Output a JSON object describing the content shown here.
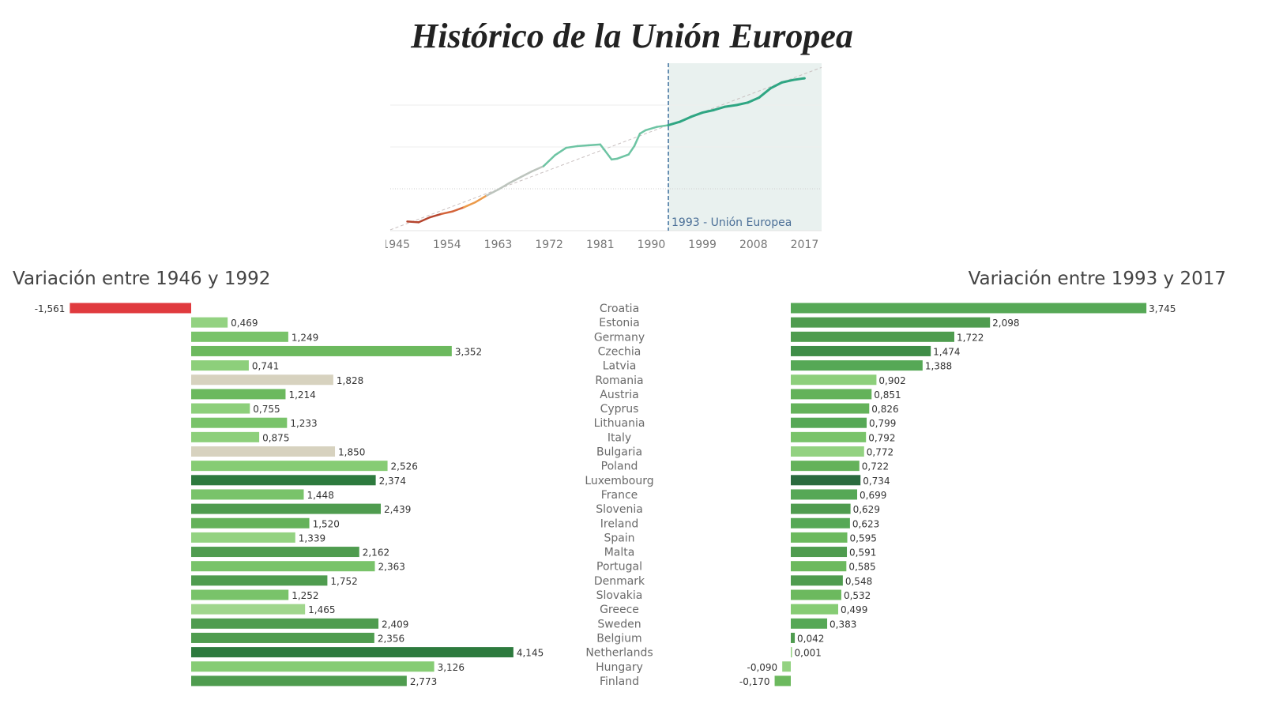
{
  "title": "Histórico de la Unión Europea",
  "line_chart": {
    "x_ticks": [
      "1945",
      "1954",
      "1963",
      "1972",
      "1981",
      "1990",
      "1999",
      "2008",
      "2017"
    ],
    "marker_label": "1993 - Unión Europea",
    "marker_year": 1993,
    "shaded_from": 1993,
    "colors": {
      "shade": "#e9f1ef",
      "marker": "#3d6e9e",
      "trend": "#c9c0c0"
    }
  },
  "chart_data": [
    {
      "type": "line",
      "title": "Histórico de la Unión Europea",
      "xlabel": "",
      "ylabel": "",
      "xlim": [
        1944,
        2020
      ],
      "x": [
        1947,
        1949,
        1951,
        1953,
        1955,
        1957,
        1959,
        1961,
        1963,
        1965,
        1967,
        1969,
        1971,
        1973,
        1975,
        1977,
        1979,
        1981,
        1983,
        1984,
        1986,
        1987,
        1988,
        1989,
        1991,
        1993,
        1995,
        1997,
        1999,
        2001,
        2003,
        2005,
        2007,
        2009,
        2011,
        2013,
        2015,
        2017
      ],
      "y": [
        0.22,
        0.2,
        0.32,
        0.4,
        0.46,
        0.56,
        0.68,
        0.84,
        0.98,
        1.14,
        1.28,
        1.42,
        1.54,
        1.8,
        1.98,
        2.02,
        2.04,
        2.06,
        1.7,
        1.72,
        1.82,
        2.02,
        2.32,
        2.4,
        2.48,
        2.52,
        2.6,
        2.72,
        2.82,
        2.88,
        2.96,
        3.0,
        3.06,
        3.18,
        3.4,
        3.54,
        3.6,
        3.64
      ],
      "trend": {
        "x": [
          1944,
          2020
        ],
        "y": [
          0.02,
          3.9
        ]
      },
      "ylim": [
        0,
        4
      ]
    },
    {
      "type": "bar",
      "title": "Variación entre 1946 y 1992",
      "categories": [
        "Croatia",
        "Estonia",
        "Germany",
        "Czechia",
        "Latvia",
        "Romania",
        "Austria",
        "Cyprus",
        "Lithuania",
        "Italy",
        "Bulgaria",
        "Poland",
        "Luxembourg",
        "France",
        "Slovenia",
        "Ireland",
        "Spain",
        "Malta",
        "Portugal",
        "Denmark",
        "Slovakia",
        "Greece",
        "Sweden",
        "Belgium",
        "Netherlands",
        "Hungary",
        "Finland"
      ],
      "values": [
        -1.561,
        0.469,
        1.249,
        3.352,
        0.741,
        1.828,
        1.214,
        0.755,
        1.233,
        0.875,
        1.85,
        2.526,
        2.374,
        1.448,
        2.439,
        1.52,
        1.339,
        2.162,
        2.363,
        1.752,
        1.252,
        1.465,
        2.409,
        2.356,
        4.145,
        3.126,
        2.773
      ],
      "labels": [
        "-1,561",
        "0,469",
        "1,249",
        "3,352",
        "0,741",
        "1,828",
        "1,214",
        "0,755",
        "1,233",
        "0,875",
        "1,850",
        "2,526",
        "2,374",
        "1,448",
        "2,439",
        "1,520",
        "1,339",
        "2,162",
        "2,363",
        "1,752",
        "1,252",
        "1,465",
        "2,409",
        "2,356",
        "4,145",
        "3,126",
        "2,773"
      ],
      "colors": [
        "#e03a3e",
        "#93d281",
        "#79c36a",
        "#6cb95e",
        "#8dcf7b",
        "#d7d2bf",
        "#6cb95e",
        "#8dcf7b",
        "#79c36a",
        "#8dcf7b",
        "#d7d2bf",
        "#86cc74",
        "#2d7a3e",
        "#79c36a",
        "#4f9c4f",
        "#64b25a",
        "#93d281",
        "#4f9c4f",
        "#79c36a",
        "#4f9c4f",
        "#79c36a",
        "#a0d68d",
        "#4f9c4f",
        "#4f9c4f",
        "#2d7a3e",
        "#86cc74",
        "#4f9c4f"
      ]
    },
    {
      "type": "bar",
      "title": "Variación entre 1993 y 2017",
      "categories": [
        "Croatia",
        "Estonia",
        "Germany",
        "Czechia",
        "Latvia",
        "Romania",
        "Austria",
        "Cyprus",
        "Lithuania",
        "Italy",
        "Bulgaria",
        "Poland",
        "Luxembourg",
        "France",
        "Slovenia",
        "Ireland",
        "Spain",
        "Malta",
        "Portugal",
        "Denmark",
        "Slovakia",
        "Greece",
        "Sweden",
        "Belgium",
        "Netherlands",
        "Hungary",
        "Finland"
      ],
      "values": [
        3.745,
        2.098,
        1.722,
        1.474,
        1.388,
        0.902,
        0.851,
        0.826,
        0.799,
        0.792,
        0.772,
        0.722,
        0.734,
        0.699,
        0.629,
        0.623,
        0.595,
        0.591,
        0.585,
        0.548,
        0.532,
        0.499,
        0.383,
        0.042,
        0.001,
        -0.09,
        -0.17
      ],
      "labels": [
        "3,745",
        "2,098",
        "1,722",
        "1,474",
        "1,388",
        "0,902",
        "0,851",
        "0,826",
        "0,799",
        "0,792",
        "0,772",
        "0,722",
        "0,734",
        "0,699",
        "0,629",
        "0,623",
        "0,595",
        "0,591",
        "0,585",
        "0,548",
        "0,532",
        "0,499",
        "0,383",
        "0,042",
        "0,001",
        "-0,090",
        "-0,170"
      ],
      "colors": [
        "#56a856",
        "#4f9c4f",
        "#4f9c4f",
        "#3f8d48",
        "#56a856",
        "#8dcf7b",
        "#64b25a",
        "#64b25a",
        "#56a856",
        "#79c36a",
        "#93d281",
        "#64b25a",
        "#2a6b3e",
        "#56a856",
        "#4f9c4f",
        "#56a856",
        "#6cb95e",
        "#4f9c4f",
        "#6cb95e",
        "#4f9c4f",
        "#6cb95e",
        "#86cc74",
        "#56a856",
        "#4f9c4f",
        "#93d281",
        "#93d281",
        "#6cb95e"
      ]
    }
  ]
}
